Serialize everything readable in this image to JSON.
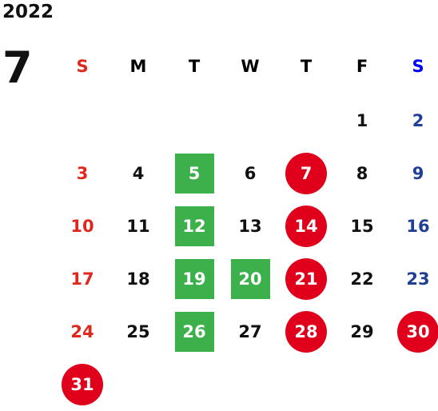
{
  "year": "2022",
  "month": "7",
  "weekdays": [
    "S",
    "M",
    "T",
    "W",
    "T",
    "F",
    "S"
  ],
  "weeks": [
    [
      null,
      null,
      null,
      null,
      null,
      {
        "d": "1"
      },
      {
        "d": "2"
      }
    ],
    [
      {
        "d": "3"
      },
      {
        "d": "4"
      },
      {
        "d": "5",
        "mark": "green"
      },
      {
        "d": "6"
      },
      {
        "d": "7",
        "mark": "red"
      },
      {
        "d": "8"
      },
      {
        "d": "9"
      }
    ],
    [
      {
        "d": "10"
      },
      {
        "d": "11"
      },
      {
        "d": "12",
        "mark": "green"
      },
      {
        "d": "13"
      },
      {
        "d": "14",
        "mark": "red"
      },
      {
        "d": "15"
      },
      {
        "d": "16"
      }
    ],
    [
      {
        "d": "17"
      },
      {
        "d": "18"
      },
      {
        "d": "19",
        "mark": "green"
      },
      {
        "d": "20",
        "mark": "green"
      },
      {
        "d": "21",
        "mark": "red"
      },
      {
        "d": "22"
      },
      {
        "d": "23"
      }
    ],
    [
      {
        "d": "24"
      },
      {
        "d": "25"
      },
      {
        "d": "26",
        "mark": "green"
      },
      {
        "d": "27"
      },
      {
        "d": "28",
        "mark": "red"
      },
      {
        "d": "29"
      },
      {
        "d": "30",
        "mark": "red"
      }
    ],
    [
      {
        "d": "31",
        "mark": "red"
      },
      null,
      null,
      null,
      null,
      null,
      null
    ]
  ],
  "colors": {
    "sunday": "#e0271c",
    "saturday": "#1f3f96",
    "green_mark": "#3cb04a",
    "red_mark": "#e0001b"
  }
}
